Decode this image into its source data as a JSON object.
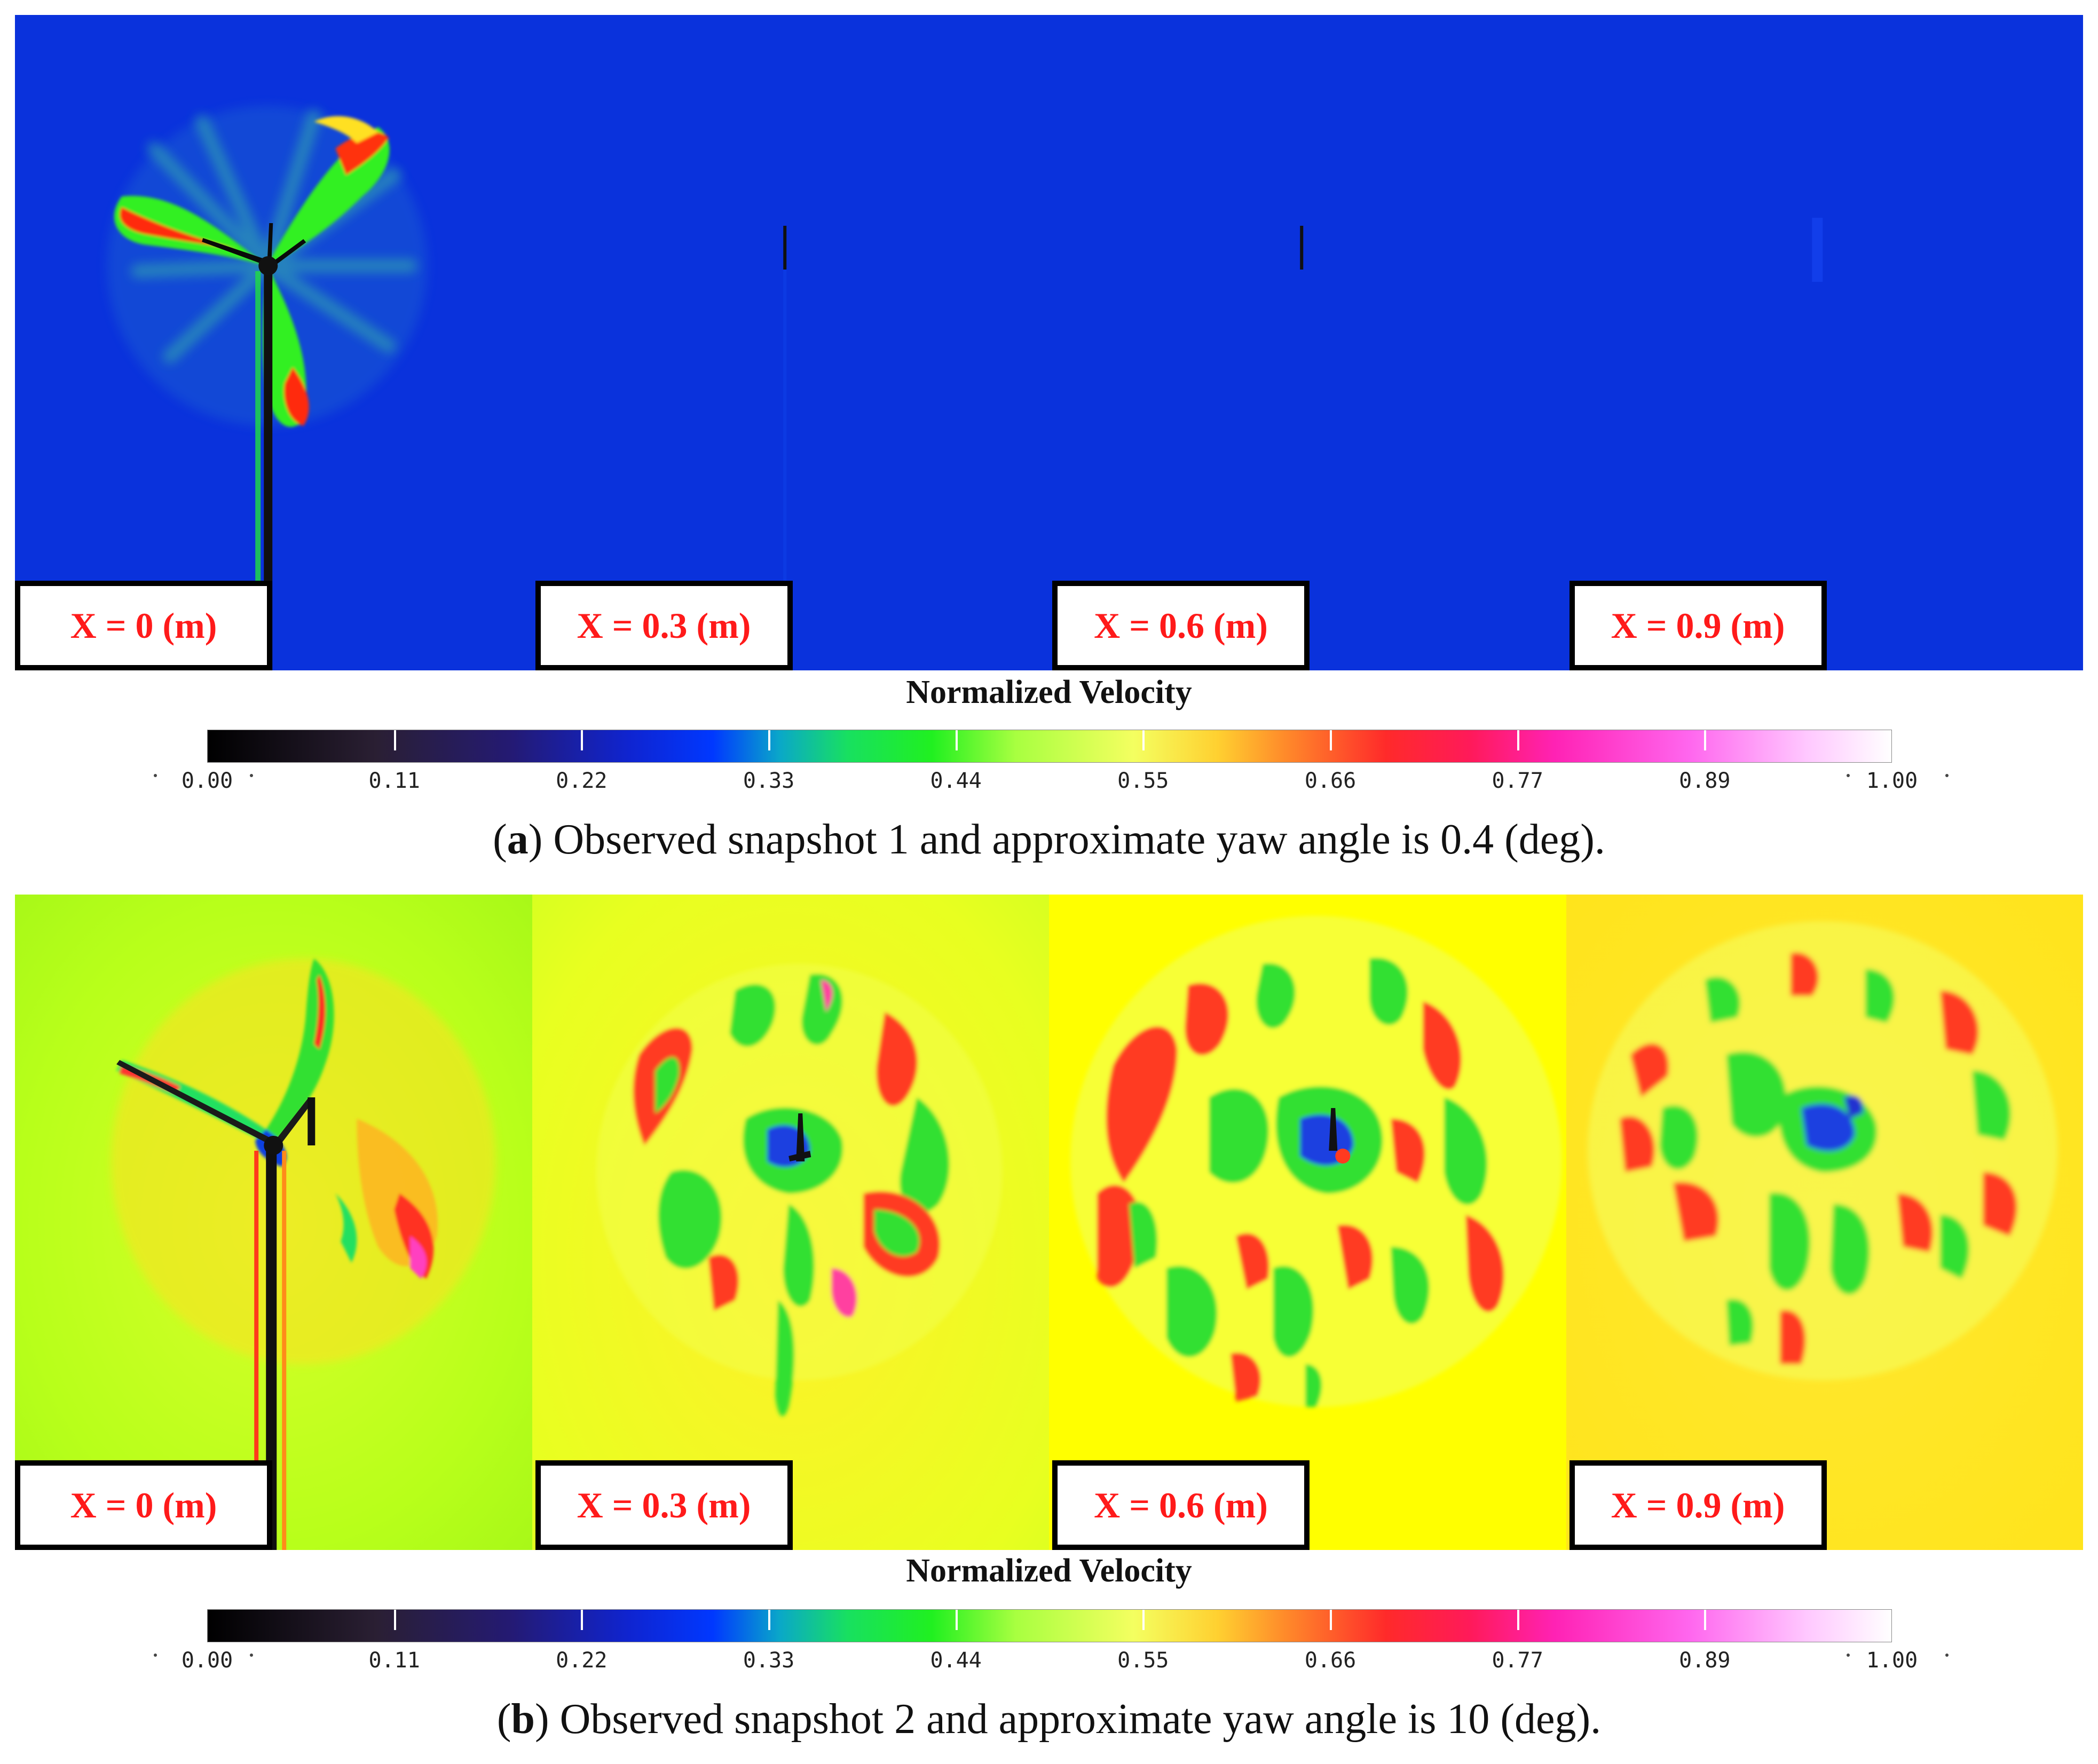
{
  "panel_a": {
    "position_labels": [
      "X = 0 (m)",
      "X = 0.3 (m)",
      "X = 0.6 (m)",
      "X = 0.9 (m)"
    ],
    "colorbar": {
      "title": "Normalized Velocity",
      "ticks": [
        "0.00",
        "0.11",
        "0.22",
        "0.33",
        "0.44",
        "0.55",
        "0.66",
        "0.77",
        "0.89",
        "1.00"
      ]
    },
    "caption": {
      "letter": "a",
      "text": "Observed snapshot 1 and approximate yaw angle is 0.4 (deg)."
    }
  },
  "panel_b": {
    "position_labels": [
      "X = 0 (m)",
      "X = 0.3 (m)",
      "X = 0.6 (m)",
      "X = 0.9 (m)"
    ],
    "colorbar": {
      "title": "Normalized Velocity",
      "ticks": [
        "0.00",
        "0.11",
        "0.22",
        "0.33",
        "0.44",
        "0.55",
        "0.66",
        "0.77",
        "0.89",
        "1.00"
      ]
    },
    "caption": {
      "letter": "b",
      "text": "Observed snapshot 2 and approximate yaw angle is 10 (deg)."
    }
  },
  "colors": {
    "label_text": "#ff1a1a",
    "field_a": "#0a32dc",
    "field_b": "#ffff00"
  }
}
